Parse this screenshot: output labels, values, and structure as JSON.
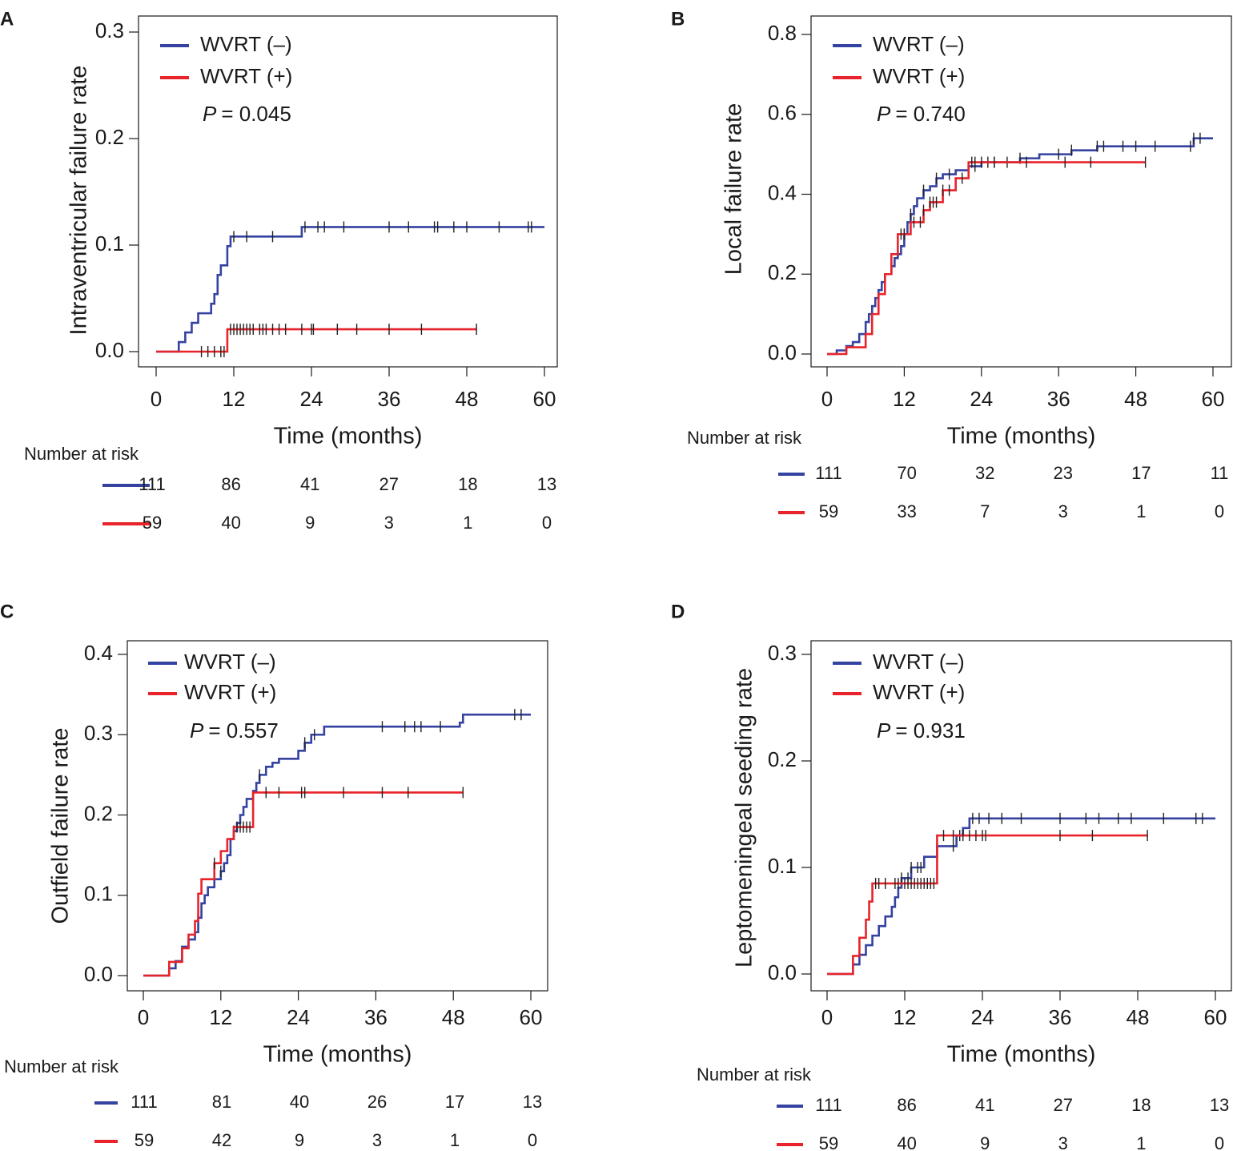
{
  "colors": {
    "wvrt_minus": "#3442a0",
    "wvrt_plus": "#e8232a",
    "axis": "#1a1a1a"
  },
  "chart_data": [
    {
      "panel_label": "A",
      "type": "line",
      "title": "",
      "xlabel": "Time (months)",
      "ylabel": "Intraventricular failure rate",
      "xlim": [
        0,
        60
      ],
      "ylim": [
        0,
        0.3
      ],
      "x_ticks": [
        0,
        12,
        24,
        36,
        48,
        60
      ],
      "y_ticks": [
        "0.0",
        "0.1",
        "0.2",
        "0.3"
      ],
      "p_prefix": "P",
      "p_value": "= 0.045",
      "risk_title": "Number at risk",
      "series": [
        {
          "name": "WVRT (–)",
          "key": "wvrt_minus",
          "steps": [
            [
              0,
              0
            ],
            [
              3.5,
              0.009
            ],
            [
              4.5,
              0.018
            ],
            [
              5.5,
              0.027
            ],
            [
              6.5,
              0.036
            ],
            [
              8.5,
              0.045
            ],
            [
              9,
              0.054
            ],
            [
              9.5,
              0.072
            ],
            [
              10,
              0.081
            ],
            [
              11,
              0.099
            ],
            [
              11.5,
              0.108
            ],
            [
              22.5,
              0.117
            ],
            [
              60,
              0.117
            ]
          ],
          "censor": [
            12,
            14,
            18,
            23,
            25,
            26,
            29,
            36,
            39,
            43,
            43.5,
            46,
            48,
            53,
            57.5,
            58
          ],
          "risk": [
            111,
            86,
            41,
            27,
            18,
            13
          ]
        },
        {
          "name": "WVRT (+)",
          "key": "wvrt_plus",
          "steps": [
            [
              0,
              0
            ],
            [
              11,
              0.021
            ],
            [
              49.5,
              0.021
            ]
          ],
          "censor": [
            7,
            8,
            9,
            10,
            10.5,
            11.5,
            12,
            12.5,
            13,
            13.5,
            14,
            14.5,
            15,
            16,
            16.5,
            17,
            18,
            19,
            20,
            22.5,
            24,
            24.3,
            28,
            31,
            36,
            41,
            49.5
          ],
          "risk": [
            59,
            40,
            9,
            3,
            1,
            0
          ]
        }
      ]
    },
    {
      "panel_label": "B",
      "type": "line",
      "title": "",
      "xlabel": "Time (months)",
      "ylabel": "Local failure rate",
      "xlim": [
        0,
        60
      ],
      "ylim": [
        0,
        0.8
      ],
      "x_ticks": [
        0,
        12,
        24,
        36,
        48,
        60
      ],
      "y_ticks": [
        "0.0",
        "0.2",
        "0.4",
        "0.6",
        "0.8"
      ],
      "p_prefix": "P",
      "p_value": "= 0.740",
      "risk_title": "Number at risk",
      "series": [
        {
          "name": "WVRT (–)",
          "key": "wvrt_minus",
          "steps": [
            [
              0,
              0
            ],
            [
              1.5,
              0.009
            ],
            [
              3,
              0.02
            ],
            [
              4,
              0.03
            ],
            [
              5,
              0.05
            ],
            [
              6,
              0.08
            ],
            [
              6.5,
              0.1
            ],
            [
              7,
              0.12
            ],
            [
              7.5,
              0.14
            ],
            [
              8,
              0.16
            ],
            [
              8.5,
              0.18
            ],
            [
              9,
              0.2
            ],
            [
              10,
              0.22
            ],
            [
              10.5,
              0.24
            ],
            [
              11,
              0.25
            ],
            [
              11.5,
              0.27
            ],
            [
              12,
              0.3
            ],
            [
              12.5,
              0.33
            ],
            [
              13,
              0.35
            ],
            [
              13.5,
              0.37
            ],
            [
              14,
              0.39
            ],
            [
              15,
              0.41
            ],
            [
              16,
              0.42
            ],
            [
              17,
              0.44
            ],
            [
              18,
              0.45
            ],
            [
              20,
              0.46
            ],
            [
              22,
              0.47
            ],
            [
              24,
              0.48
            ],
            [
              30,
              0.49
            ],
            [
              33,
              0.5
            ],
            [
              38,
              0.51
            ],
            [
              42,
              0.52
            ],
            [
              57,
              0.54
            ],
            [
              60,
              0.54
            ]
          ],
          "censor": [
            12,
            13,
            15,
            17,
            19,
            23,
            25,
            26,
            28,
            30,
            36,
            38,
            42,
            43,
            46,
            48,
            51,
            56.5,
            57,
            58
          ],
          "risk": [
            111,
            70,
            32,
            23,
            17,
            11
          ]
        },
        {
          "name": "WVRT (+)",
          "key": "wvrt_plus",
          "steps": [
            [
              0,
              0
            ],
            [
              3,
              0.017
            ],
            [
              6,
              0.05
            ],
            [
              7,
              0.1
            ],
            [
              8,
              0.15
            ],
            [
              9,
              0.2
            ],
            [
              10,
              0.25
            ],
            [
              11,
              0.3
            ],
            [
              13,
              0.33
            ],
            [
              15,
              0.36
            ],
            [
              16,
              0.38
            ],
            [
              18,
              0.41
            ],
            [
              20,
              0.44
            ],
            [
              22,
              0.48
            ],
            [
              49.5,
              0.48
            ]
          ],
          "censor": [
            11.5,
            12,
            13.5,
            14.5,
            15,
            16,
            16.5,
            17,
            18,
            19,
            21,
            22.5,
            23,
            24,
            26,
            31,
            37,
            41,
            49.5
          ],
          "risk": [
            59,
            33,
            7,
            3,
            1,
            0
          ]
        }
      ]
    },
    {
      "panel_label": "C",
      "type": "line",
      "title": "",
      "xlabel": "Time (months)",
      "ylabel": "Outfield failure rate",
      "xlim": [
        0,
        60
      ],
      "ylim": [
        0,
        0.4
      ],
      "x_ticks": [
        0,
        12,
        24,
        36,
        48,
        60
      ],
      "y_ticks": [
        "0.0",
        "0.1",
        "0.2",
        "0.3",
        "0.4"
      ],
      "p_prefix": "P",
      "p_value": "= 0.557",
      "risk_title": "Number at risk",
      "series": [
        {
          "name": "WVRT (–)",
          "key": "wvrt_minus",
          "steps": [
            [
              0,
              0
            ],
            [
              4,
              0.009
            ],
            [
              5,
              0.018
            ],
            [
              6,
              0.036
            ],
            [
              7,
              0.045
            ],
            [
              8,
              0.054
            ],
            [
              8.5,
              0.072
            ],
            [
              9,
              0.09
            ],
            [
              9.5,
              0.1
            ],
            [
              10,
              0.11
            ],
            [
              11,
              0.12
            ],
            [
              12,
              0.13
            ],
            [
              12.5,
              0.14
            ],
            [
              13,
              0.15
            ],
            [
              13.5,
              0.17
            ],
            [
              14,
              0.18
            ],
            [
              14.5,
              0.19
            ],
            [
              15,
              0.2
            ],
            [
              15.5,
              0.21
            ],
            [
              16,
              0.22
            ],
            [
              17,
              0.23
            ],
            [
              17.5,
              0.24
            ],
            [
              18,
              0.25
            ],
            [
              19,
              0.26
            ],
            [
              20,
              0.265
            ],
            [
              21,
              0.27
            ],
            [
              24,
              0.28
            ],
            [
              25,
              0.29
            ],
            [
              26,
              0.3
            ],
            [
              28,
              0.31
            ],
            [
              49,
              0.315
            ],
            [
              49.5,
              0.325
            ],
            [
              60,
              0.325
            ]
          ],
          "censor": [
            12,
            14,
            18,
            25,
            26.5,
            37,
            40.5,
            42,
            43,
            46,
            57.5,
            58.5
          ],
          "risk": [
            111,
            81,
            40,
            26,
            17,
            13
          ]
        },
        {
          "name": "WVRT (+)",
          "key": "wvrt_plus",
          "steps": [
            [
              0,
              0
            ],
            [
              4,
              0.017
            ],
            [
              6,
              0.034
            ],
            [
              7,
              0.051
            ],
            [
              8,
              0.068
            ],
            [
              8.5,
              0.102
            ],
            [
              9,
              0.12
            ],
            [
              11,
              0.14
            ],
            [
              12,
              0.155
            ],
            [
              13,
              0.17
            ],
            [
              14,
              0.185
            ],
            [
              17,
              0.228
            ],
            [
              49.5,
              0.228
            ]
          ],
          "censor": [
            11,
            14.5,
            15,
            15.5,
            16,
            16.5,
            19,
            21,
            24.5,
            25,
            31,
            37,
            41,
            49.5
          ],
          "risk": [
            59,
            42,
            9,
            3,
            1,
            0
          ]
        }
      ]
    },
    {
      "panel_label": "D",
      "type": "line",
      "title": "",
      "xlabel": "Time (months)",
      "ylabel": "Leptomeningeal seeding rate",
      "xlim": [
        0,
        60
      ],
      "ylim": [
        0,
        0.3
      ],
      "x_ticks": [
        0,
        12,
        24,
        36,
        48,
        60
      ],
      "y_ticks": [
        "0.0",
        "0.1",
        "0.2",
        "0.3"
      ],
      "p_prefix": "P",
      "p_value": "= 0.931",
      "risk_title": "Number at risk",
      "series": [
        {
          "name": "WVRT (–)",
          "key": "wvrt_minus",
          "steps": [
            [
              0,
              0
            ],
            [
              4,
              0.009
            ],
            [
              5,
              0.018
            ],
            [
              6,
              0.027
            ],
            [
              7,
              0.036
            ],
            [
              8,
              0.045
            ],
            [
              9,
              0.054
            ],
            [
              10,
              0.063
            ],
            [
              10.5,
              0.072
            ],
            [
              11,
              0.081
            ],
            [
              11.5,
              0.09
            ],
            [
              13,
              0.1
            ],
            [
              15,
              0.11
            ],
            [
              17,
              0.12
            ],
            [
              20,
              0.13
            ],
            [
              21,
              0.137
            ],
            [
              22,
              0.146
            ],
            [
              60,
              0.146
            ]
          ],
          "censor": [
            11.5,
            12.5,
            13,
            14,
            14.5,
            17,
            19.5,
            20.5,
            22.5,
            23.5,
            25,
            27,
            30,
            36,
            40,
            42,
            45,
            47,
            52,
            57,
            58
          ],
          "risk": [
            111,
            86,
            41,
            27,
            18,
            13
          ]
        },
        {
          "name": "WVRT (+)",
          "key": "wvrt_plus",
          "steps": [
            [
              0,
              0
            ],
            [
              4,
              0.017
            ],
            [
              5,
              0.034
            ],
            [
              6,
              0.051
            ],
            [
              6.5,
              0.068
            ],
            [
              7,
              0.085
            ],
            [
              17,
              0.13
            ],
            [
              49.5,
              0.13
            ]
          ],
          "censor": [
            7.5,
            8,
            9,
            10.5,
            11,
            12,
            12.5,
            13,
            13.5,
            14,
            14.5,
            15,
            15.5,
            16,
            16.5,
            18,
            19.5,
            21,
            22,
            23,
            24,
            24.5,
            36,
            41,
            49.5
          ],
          "risk": [
            59,
            40,
            9,
            3,
            1,
            0
          ]
        }
      ]
    }
  ]
}
